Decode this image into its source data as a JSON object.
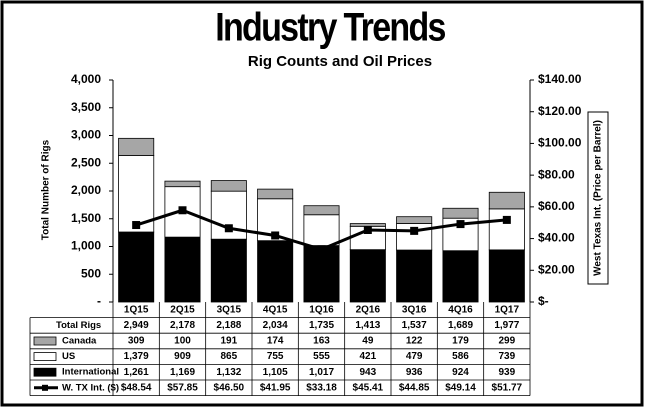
{
  "chart_data": {
    "type": "bar-line",
    "title": "Industry Trends",
    "subtitle": "Rig Counts and Oil Prices",
    "y_label": "Total Number of Rigs",
    "y2_label": "West Texas Int. (Price per Barrel)",
    "categories": [
      "1Q15",
      "2Q15",
      "3Q15",
      "4Q15",
      "1Q16",
      "2Q16",
      "3Q16",
      "4Q16",
      "1Q17"
    ],
    "total_rigs": {
      "name": "Total Rigs",
      "values": [
        2949,
        2178,
        2188,
        2034,
        1735,
        1413,
        1537,
        1689,
        1977
      ],
      "value_labels": [
        "2,949",
        "2,178",
        "2,188",
        "2,034",
        "1,735",
        "1,413",
        "1,537",
        "1,689",
        "1,977"
      ]
    },
    "series": [
      {
        "name": "Canada",
        "type": "bar",
        "color": "#a6a6a6",
        "values": [
          309,
          100,
          191,
          174,
          163,
          49,
          122,
          179,
          299
        ]
      },
      {
        "name": "US",
        "type": "bar",
        "color": "#ffffff",
        "values": [
          1379,
          909,
          865,
          755,
          555,
          421,
          479,
          586,
          739
        ],
        "value_labels": [
          "1,379",
          "909",
          "865",
          "755",
          "555",
          "421",
          "479",
          "586",
          "739"
        ]
      },
      {
        "name": "International",
        "type": "bar",
        "color": "#000000",
        "values": [
          1261,
          1169,
          1132,
          1105,
          1017,
          943,
          936,
          924,
          939
        ],
        "value_labels": [
          "1,261",
          "1,169",
          "1,132",
          "1,105",
          "1,017",
          "943",
          "936",
          "924",
          "939"
        ]
      },
      {
        "name": "W. TX Int. ($)",
        "type": "line",
        "axis": "y2",
        "color": "#000000",
        "values": [
          48.54,
          57.85,
          46.5,
          41.95,
          33.18,
          45.41,
          44.85,
          49.14,
          51.77
        ],
        "value_labels": [
          "$48.54",
          "$57.85",
          "$46.50",
          "$41.95",
          "$33.18",
          "$45.41",
          "$44.85",
          "$49.14",
          "$51.77"
        ]
      }
    ],
    "ylim": [
      0,
      4000
    ],
    "yticks": [
      {
        "value": 0,
        "label": "-"
      },
      500,
      {
        "value": 1000,
        "label": "1,000"
      },
      {
        "value": 1500,
        "label": "1,500"
      },
      {
        "value": 2000,
        "label": "2,000"
      },
      {
        "value": 2500,
        "label": "2,500"
      },
      {
        "value": 3000,
        "label": "3,000"
      },
      {
        "value": 3500,
        "label": "3,500"
      },
      {
        "value": 4000,
        "label": "4,000"
      }
    ],
    "y2lim": [
      0,
      140
    ],
    "y2ticks": [
      {
        "value": 0,
        "label": "$-"
      },
      {
        "value": 20,
        "label": "$20.00"
      },
      {
        "value": 40,
        "label": "$40.00"
      },
      {
        "value": 60,
        "label": "$60.00"
      },
      {
        "value": 80,
        "label": "$80.00"
      },
      {
        "value": 100,
        "label": "$100.00"
      },
      {
        "value": 120,
        "label": "$120.00"
      },
      {
        "value": 140,
        "label": "$140.00"
      }
    ]
  }
}
